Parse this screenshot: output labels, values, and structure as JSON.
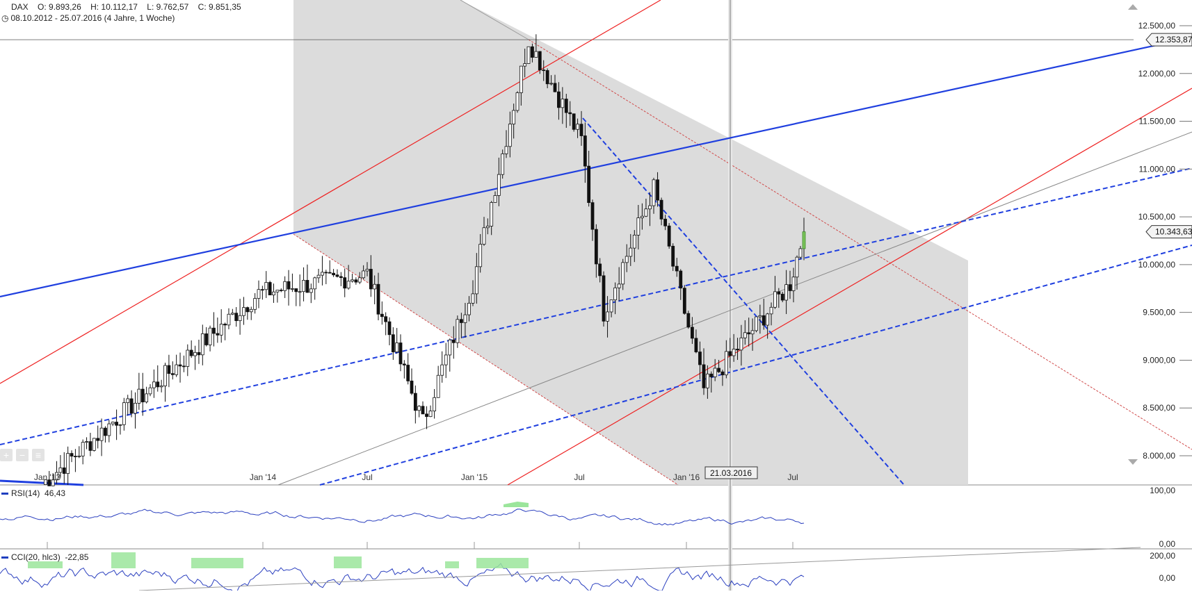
{
  "header": {
    "symbol": "DAX",
    "open": "O: 9.893,26",
    "high": "H: 10.112,17",
    "low": "L: 9.762,57",
    "close": "C: 9.851,35",
    "range": "08.10.2012 - 25.07.2016 (4 Jahre, 1 Woche)"
  },
  "price_tags": {
    "last": "10.343,63",
    "level": "12.353,87"
  },
  "crosshair_date": "21.03.2016",
  "indicators": {
    "rsi": {
      "label": "RSI(14)",
      "value": "46,43",
      "ticks": [
        "100,00",
        "0,00"
      ]
    },
    "cci": {
      "label": "CCI(20, hlc3)",
      "value": "-22,85",
      "ticks": [
        "200,00",
        "0,00"
      ]
    }
  },
  "colors": {
    "trend_blue": "#1f3fdf",
    "trend_red": "#ee2222",
    "channel_fill": "#dcdcdc",
    "rsi_line": "#2a3fbf",
    "overbought_fill": "#9be59b"
  },
  "chart_data": {
    "type": "candlestick",
    "title": "DAX",
    "interval": "1 Woche",
    "y_ticks": [
      "12.500,00",
      "12.000,00",
      "11.500,00",
      "11.000,00",
      "10.500,00",
      "10.000,00",
      "9.500,00",
      "9.000,00",
      "8.500,00",
      "8.000,00"
    ],
    "ylim": [
      7750,
      12700
    ],
    "x_ticks": [
      "Jan '13",
      "Jan '14",
      "Jul",
      "Jan '15",
      "Jul",
      "Jan '16",
      "Jul"
    ],
    "key_points": [
      {
        "date": "Jan '13",
        "close": 7700
      },
      {
        "date": "Jan '14",
        "close": 9700
      },
      {
        "date": "Jul '14",
        "close": 9900
      },
      {
        "date": "Okt '14",
        "close": 8350
      },
      {
        "date": "Jan '15",
        "close": 9800
      },
      {
        "date": "Apr '15",
        "close": 12353.87
      },
      {
        "date": "Jul '15",
        "close": 11300
      },
      {
        "date": "Sep '15",
        "close": 9500
      },
      {
        "date": "Dez '15",
        "close": 10800
      },
      {
        "date": "Feb '16",
        "close": 8700
      },
      {
        "date": "Jul '16",
        "close": 9800
      },
      {
        "date": "25.07.2016",
        "close": 10343.63
      }
    ]
  }
}
